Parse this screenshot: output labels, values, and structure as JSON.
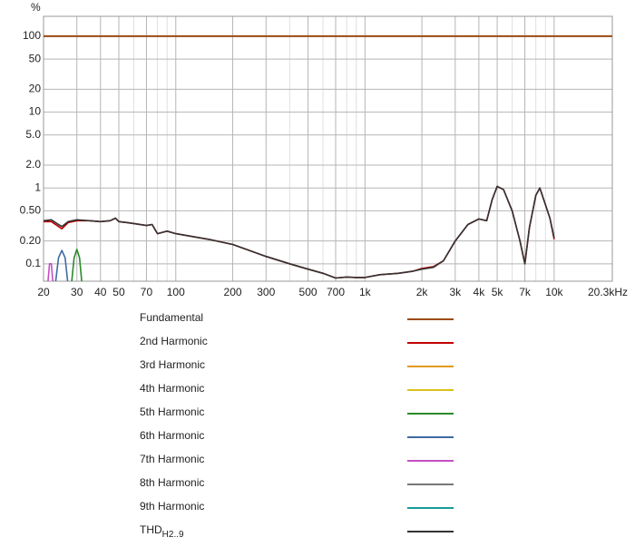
{
  "chart_data": {
    "type": "line",
    "xscale": "log",
    "yscale": "log",
    "grid": true,
    "ylabel": "%",
    "xlim": [
      20,
      20300
    ],
    "ylim": [
      0.059,
      183
    ],
    "xticks": [
      20,
      30,
      40,
      50,
      70,
      100,
      200,
      300,
      500,
      700,
      {
        "value": 1000,
        "label": "1k"
      },
      {
        "value": 2000,
        "label": "2k"
      },
      {
        "value": 3000,
        "label": "3k"
      },
      {
        "value": 4000,
        "label": "4k"
      },
      {
        "value": 5000,
        "label": "5k"
      },
      {
        "value": 7000,
        "label": "7k"
      },
      {
        "value": 10000,
        "label": "10k"
      },
      {
        "value": 20300,
        "label": "20.3kHz"
      }
    ],
    "xminorticks": [
      60,
      80,
      90,
      400,
      600,
      800,
      900,
      6000,
      8000,
      9000
    ],
    "yticks": [
      100,
      50,
      20,
      10,
      {
        "value": 5,
        "label": "5.0"
      },
      {
        "value": 2,
        "label": "2.0"
      },
      1,
      {
        "value": 0.5,
        "label": "0.50"
      },
      {
        "value": 0.2,
        "label": "0.20"
      },
      0.1
    ],
    "series": [
      {
        "name": "Fundamental",
        "color": "#9b4a12",
        "x": [
          20,
          20300
        ],
        "values": [
          100,
          100
        ]
      },
      {
        "name": "2nd Harmonic",
        "color": "#c00000",
        "x": [
          20,
          22,
          24,
          25,
          27,
          30,
          35,
          40,
          45,
          48,
          50,
          55,
          60,
          70,
          75,
          80,
          85,
          90,
          100,
          150,
          200,
          300,
          400,
          500,
          600,
          700,
          800,
          900,
          1000,
          1200,
          1500,
          1800,
          2000,
          2300,
          2600,
          3000,
          3500,
          4000,
          4400,
          4700,
          5000,
          5400,
          6000,
          6600,
          7000,
          7400,
          8000,
          8400,
          9000,
          9500,
          10000
        ],
        "values": [
          0.36,
          0.36,
          0.31,
          0.29,
          0.35,
          0.37,
          0.37,
          0.36,
          0.37,
          0.4,
          0.36,
          0.35,
          0.34,
          0.32,
          0.33,
          0.25,
          0.26,
          0.27,
          0.25,
          0.21,
          0.18,
          0.125,
          0.1,
          0.085,
          0.075,
          0.065,
          0.067,
          0.066,
          0.066,
          0.072,
          0.075,
          0.08,
          0.087,
          0.092,
          0.11,
          0.2,
          0.33,
          0.39,
          0.37,
          0.7,
          1.05,
          0.95,
          0.5,
          0.2,
          0.1,
          0.3,
          0.8,
          1,
          0.6,
          0.4,
          0.21
        ]
      },
      {
        "name": "3rd Harmonic",
        "color": "#e39a1a",
        "x": [],
        "values": []
      },
      {
        "name": "4th Harmonic",
        "color": "#d9c21c",
        "x": [],
        "values": []
      },
      {
        "name": "5th Harmonic",
        "color": "#2a8a2a",
        "x": [
          28,
          29,
          30,
          31,
          32
        ],
        "values": [
          0.05,
          0.12,
          0.155,
          0.12,
          0.05
        ]
      },
      {
        "name": "6th Harmonic",
        "color": "#3f6aa3",
        "x": [
          23,
          24,
          25,
          26,
          27
        ],
        "values": [
          0.05,
          0.12,
          0.15,
          0.12,
          0.05
        ]
      },
      {
        "name": "7th Harmonic",
        "color": "#c44fc4",
        "x": [
          21,
          21.5,
          22,
          22.5
        ],
        "values": [
          0.05,
          0.1,
          0.1,
          0.05
        ]
      },
      {
        "name": "8th Harmonic",
        "color": "#777777",
        "x": [],
        "values": []
      },
      {
        "name": "9th Harmonic",
        "color": "#1a9a9a",
        "x": [],
        "values": []
      },
      {
        "name": "THD",
        "name_sub": "H2..9",
        "color": "#333333",
        "x": [
          20,
          22,
          24,
          25,
          27,
          30,
          35,
          40,
          45,
          48,
          50,
          55,
          60,
          70,
          75,
          80,
          85,
          90,
          100,
          150,
          200,
          300,
          400,
          500,
          600,
          700,
          800,
          900,
          1000,
          1200,
          1500,
          1800,
          2000,
          2300,
          2600,
          3000,
          3500,
          4000,
          4400,
          4700,
          5000,
          5400,
          6000,
          6600,
          7000,
          7400,
          8000,
          8400,
          9000,
          9500,
          10000
        ],
        "values": [
          0.37,
          0.38,
          0.33,
          0.31,
          0.36,
          0.38,
          0.37,
          0.36,
          0.37,
          0.4,
          0.36,
          0.35,
          0.34,
          0.32,
          0.33,
          0.25,
          0.26,
          0.27,
          0.25,
          0.21,
          0.18,
          0.125,
          0.1,
          0.085,
          0.075,
          0.065,
          0.067,
          0.066,
          0.066,
          0.072,
          0.075,
          0.08,
          0.085,
          0.09,
          0.11,
          0.2,
          0.33,
          0.39,
          0.37,
          0.7,
          1.05,
          0.95,
          0.5,
          0.2,
          0.1,
          0.3,
          0.8,
          1,
          0.6,
          0.4,
          0.22
        ]
      }
    ]
  }
}
